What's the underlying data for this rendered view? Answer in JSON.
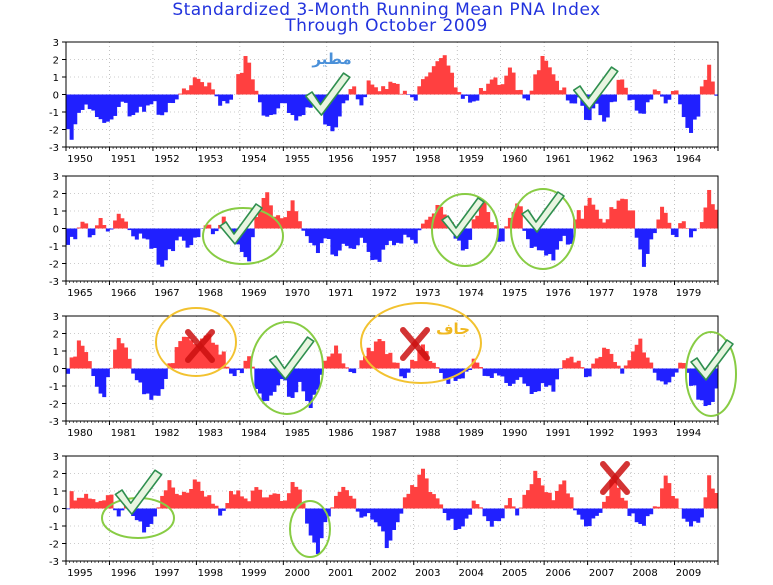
{
  "title": "Standardized 3-Month Running Mean PNA Index",
  "subtitle": "Through October 2009",
  "colors": {
    "positive": "#ff4040",
    "negative": "#2020ff",
    "circle_green": "#88cc44",
    "circle_yellow": "#f2c230",
    "check": "#2f8f4f",
    "cross": "#cc1111"
  },
  "chart_data": [
    {
      "type": "area",
      "x_range": [
        1950,
        1965
      ],
      "year_labels": [
        "1950",
        "1951",
        "1952",
        "1953",
        "1954",
        "1955",
        "1956",
        "1957",
        "1958",
        "1959",
        "1960",
        "1961",
        "1962",
        "1963",
        "1964"
      ],
      "ylim": [
        -3,
        3
      ],
      "yticks": [
        "3",
        "2",
        "1",
        "0",
        "-1",
        "-2",
        "-3"
      ],
      "grid": true,
      "points": [
        [
          1950.0,
          -1.5
        ],
        [
          1950.1,
          -2.8
        ],
        [
          1950.25,
          -1.2
        ],
        [
          1950.5,
          -0.6
        ],
        [
          1950.75,
          -1.4
        ],
        [
          1951.0,
          -1.6
        ],
        [
          1951.3,
          -0.4
        ],
        [
          1951.5,
          -1.2
        ],
        [
          1951.7,
          -0.9
        ],
        [
          1952.0,
          -0.5
        ],
        [
          1952.2,
          -1.2
        ],
        [
          1952.5,
          -0.3
        ],
        [
          1952.75,
          0.3
        ],
        [
          1953.0,
          0.9
        ],
        [
          1953.3,
          0.5
        ],
        [
          1953.6,
          -0.6
        ],
        [
          1953.8,
          -0.3
        ],
        [
          1954.0,
          1.1
        ],
        [
          1954.15,
          2.3
        ],
        [
          1954.35,
          0.3
        ],
        [
          1954.6,
          -1.4
        ],
        [
          1954.8,
          -1.0
        ],
        [
          1955.0,
          -0.5
        ],
        [
          1955.3,
          -1.5
        ],
        [
          1955.5,
          -0.9
        ],
        [
          1955.75,
          -0.6
        ],
        [
          1956.0,
          -1.8
        ],
        [
          1956.2,
          -2.0
        ],
        [
          1956.4,
          -0.4
        ],
        [
          1956.6,
          0.4
        ],
        [
          1956.8,
          -0.6
        ],
        [
          1957.0,
          0.8
        ],
        [
          1957.2,
          0.2
        ],
        [
          1957.5,
          0.7
        ],
        [
          1957.75,
          0.2
        ],
        [
          1958.0,
          -0.3
        ],
        [
          1958.2,
          0.8
        ],
        [
          1958.5,
          1.7
        ],
        [
          1958.7,
          2.3
        ],
        [
          1958.9,
          1.0
        ],
        [
          1959.0,
          0.2
        ],
        [
          1959.2,
          -0.3
        ],
        [
          1959.4,
          -0.4
        ],
        [
          1959.6,
          0.3
        ],
        [
          1959.8,
          0.9
        ],
        [
          1960.0,
          0.6
        ],
        [
          1960.25,
          1.5
        ],
        [
          1960.4,
          0.3
        ],
        [
          1960.6,
          -0.4
        ],
        [
          1960.8,
          1.0
        ],
        [
          1961.0,
          2.3
        ],
        [
          1961.15,
          1.3
        ],
        [
          1961.4,
          0.4
        ],
        [
          1961.6,
          -0.5
        ],
        [
          1961.8,
          -0.3
        ],
        [
          1962.0,
          -1.5
        ],
        [
          1962.2,
          -0.6
        ],
        [
          1962.4,
          -1.6
        ],
        [
          1962.6,
          -0.3
        ],
        [
          1962.75,
          1.0
        ],
        [
          1962.9,
          0.2
        ],
        [
          1963.0,
          -0.3
        ],
        [
          1963.2,
          -1.2
        ],
        [
          1963.4,
          -0.5
        ],
        [
          1963.6,
          0.4
        ],
        [
          1963.8,
          -0.6
        ],
        [
          1964.0,
          0.4
        ],
        [
          1964.2,
          -1.2
        ],
        [
          1964.35,
          -2.2
        ],
        [
          1964.5,
          -1.5
        ],
        [
          1964.65,
          0.6
        ],
        [
          1964.8,
          1.5
        ],
        [
          1964.9,
          0.8
        ],
        [
          1965.0,
          -0.6
        ]
      ]
    },
    {
      "type": "area",
      "x_range": [
        1965,
        1980
      ],
      "year_labels": [
        "1965",
        "1966",
        "1967",
        "1968",
        "1969",
        "1970",
        "1971",
        "1972",
        "1973",
        "1974",
        "1975",
        "1976",
        "1977",
        "1978",
        "1979"
      ],
      "ylim": [
        -3,
        3
      ],
      "yticks": [
        "3",
        "2",
        "1",
        "0",
        "-1",
        "-2",
        "-3"
      ],
      "grid": true,
      "points": [
        [
          1965.0,
          -1.0
        ],
        [
          1965.2,
          -0.4
        ],
        [
          1965.4,
          0.4
        ],
        [
          1965.6,
          -0.5
        ],
        [
          1965.8,
          0.6
        ],
        [
          1966.0,
          -0.3
        ],
        [
          1966.2,
          0.9
        ],
        [
          1966.4,
          0.2
        ],
        [
          1966.6,
          -0.6
        ],
        [
          1966.8,
          -0.4
        ],
        [
          1967.0,
          -1.2
        ],
        [
          1967.2,
          -2.2
        ],
        [
          1967.4,
          -1.3
        ],
        [
          1967.6,
          -0.5
        ],
        [
          1967.8,
          -1.0
        ],
        [
          1968.0,
          -0.6
        ],
        [
          1968.2,
          0.3
        ],
        [
          1968.4,
          -0.3
        ],
        [
          1968.6,
          0.5
        ],
        [
          1968.8,
          -0.4
        ],
        [
          1969.0,
          -1.2
        ],
        [
          1969.2,
          -1.8
        ],
        [
          1969.4,
          0.8
        ],
        [
          1969.6,
          2.0
        ],
        [
          1969.8,
          0.8
        ],
        [
          1970.0,
          0.5
        ],
        [
          1970.2,
          1.5
        ],
        [
          1970.4,
          0.3
        ],
        [
          1970.6,
          -0.8
        ],
        [
          1970.8,
          -1.2
        ],
        [
          1971.0,
          -0.5
        ],
        [
          1971.2,
          -1.7
        ],
        [
          1971.4,
          -0.8
        ],
        [
          1971.6,
          -1.3
        ],
        [
          1971.8,
          -0.5
        ],
        [
          1972.0,
          -1.6
        ],
        [
          1972.2,
          -1.9
        ],
        [
          1972.4,
          -0.7
        ],
        [
          1972.6,
          -1.0
        ],
        [
          1972.8,
          -0.4
        ],
        [
          1973.0,
          -0.8
        ],
        [
          1973.2,
          0.2
        ],
        [
          1973.4,
          0.8
        ],
        [
          1973.6,
          1.3
        ],
        [
          1973.8,
          0.5
        ],
        [
          1974.0,
          -0.6
        ],
        [
          1974.2,
          -1.4
        ],
        [
          1974.4,
          0.6
        ],
        [
          1974.6,
          1.7
        ],
        [
          1974.8,
          0.4
        ],
        [
          1975.0,
          -0.8
        ],
        [
          1975.2,
          0.5
        ],
        [
          1975.4,
          1.6
        ],
        [
          1975.6,
          -0.6
        ],
        [
          1975.8,
          -1.2
        ],
        [
          1976.0,
          -1.3
        ],
        [
          1976.2,
          -1.8
        ],
        [
          1976.4,
          -0.5
        ],
        [
          1976.6,
          -1.0
        ],
        [
          1976.75,
          1.0
        ],
        [
          1976.9,
          0.5
        ],
        [
          1977.0,
          1.9
        ],
        [
          1977.2,
          1.0
        ],
        [
          1977.4,
          0.3
        ],
        [
          1977.6,
          1.3
        ],
        [
          1977.8,
          1.7
        ],
        [
          1978.0,
          1.2
        ],
        [
          1978.2,
          -1.3
        ],
        [
          1978.3,
          -2.0
        ],
        [
          1978.5,
          -0.5
        ],
        [
          1978.7,
          1.2
        ],
        [
          1978.9,
          0.3
        ],
        [
          1979.0,
          -0.6
        ],
        [
          1979.2,
          0.5
        ],
        [
          1979.4,
          -0.5
        ],
        [
          1979.6,
          0.3
        ],
        [
          1979.8,
          2.0
        ],
        [
          1979.95,
          1.1
        ],
        [
          1980.0,
          0.5
        ]
      ]
    },
    {
      "type": "area",
      "x_range": [
        1980,
        1995
      ],
      "year_labels": [
        "1980",
        "1981",
        "1982",
        "1983",
        "1984",
        "1985",
        "1986",
        "1987",
        "1988",
        "1989",
        "1990",
        "1991",
        "1992",
        "1993",
        "1994"
      ],
      "ylim": [
        -3,
        3
      ],
      "yticks": [
        "3",
        "2",
        "1",
        "0",
        "-1",
        "-2",
        "-3"
      ],
      "grid": true,
      "points": [
        [
          1980.0,
          -0.5
        ],
        [
          1980.15,
          0.6
        ],
        [
          1980.3,
          1.5
        ],
        [
          1980.5,
          0.8
        ],
        [
          1980.7,
          -1.1
        ],
        [
          1980.85,
          -1.6
        ],
        [
          1981.0,
          -0.3
        ],
        [
          1981.2,
          1.8
        ],
        [
          1981.4,
          1.0
        ],
        [
          1981.6,
          -0.6
        ],
        [
          1981.8,
          -1.3
        ],
        [
          1982.0,
          -1.8
        ],
        [
          1982.2,
          -1.2
        ],
        [
          1982.4,
          0.2
        ],
        [
          1982.6,
          1.5
        ],
        [
          1982.8,
          1.9
        ],
        [
          1983.0,
          1.2
        ],
        [
          1983.2,
          2.0
        ],
        [
          1983.4,
          1.5
        ],
        [
          1983.6,
          0.8
        ],
        [
          1983.8,
          -0.3
        ],
        [
          1984.0,
          -0.3
        ],
        [
          1984.2,
          0.8
        ],
        [
          1984.4,
          -1.2
        ],
        [
          1984.6,
          -2.0
        ],
        [
          1984.8,
          -1.2
        ],
        [
          1985.0,
          -0.6
        ],
        [
          1985.2,
          -1.8
        ],
        [
          1985.4,
          -0.8
        ],
        [
          1985.6,
          -2.3
        ],
        [
          1985.8,
          -1.0
        ],
        [
          1986.0,
          0.6
        ],
        [
          1986.2,
          1.2
        ],
        [
          1986.4,
          0.3
        ],
        [
          1986.6,
          -0.4
        ],
        [
          1986.8,
          0.5
        ],
        [
          1987.0,
          1.1
        ],
        [
          1987.2,
          1.7
        ],
        [
          1987.4,
          1.0
        ],
        [
          1987.6,
          0.2
        ],
        [
          1987.8,
          -0.6
        ],
        [
          1988.0,
          0.5
        ],
        [
          1988.2,
          1.3
        ],
        [
          1988.4,
          0.5
        ],
        [
          1988.6,
          -0.2
        ],
        [
          1988.8,
          -0.8
        ],
        [
          1989.0,
          -0.6
        ],
        [
          1989.2,
          -0.4
        ],
        [
          1989.4,
          0.6
        ],
        [
          1989.6,
          -0.3
        ],
        [
          1989.8,
          -0.5
        ],
        [
          1990.0,
          -0.3
        ],
        [
          1990.2,
          -1.1
        ],
        [
          1990.4,
          -0.5
        ],
        [
          1990.6,
          -1.0
        ],
        [
          1990.8,
          -1.5
        ],
        [
          1991.0,
          -0.8
        ],
        [
          1991.2,
          -1.3
        ],
        [
          1991.4,
          0.2
        ],
        [
          1991.6,
          0.7
        ],
        [
          1991.8,
          0.3
        ],
        [
          1992.0,
          -0.5
        ],
        [
          1992.2,
          0.5
        ],
        [
          1992.4,
          1.2
        ],
        [
          1992.6,
          0.6
        ],
        [
          1992.8,
          -0.3
        ],
        [
          1993.0,
          0.8
        ],
        [
          1993.2,
          1.6
        ],
        [
          1993.4,
          0.5
        ],
        [
          1993.6,
          -0.5
        ],
        [
          1993.8,
          -1.0
        ],
        [
          1994.0,
          -0.3
        ],
        [
          1994.2,
          0.4
        ],
        [
          1994.4,
          -1.0
        ],
        [
          1994.6,
          -1.8
        ],
        [
          1994.8,
          -2.3
        ],
        [
          1994.95,
          -1.2
        ],
        [
          1995.0,
          -0.5
        ]
      ]
    },
    {
      "type": "area",
      "x_range": [
        1995,
        2010
      ],
      "year_labels": [
        "1995",
        "1996",
        "1997",
        "1998",
        "1999",
        "2000",
        "2001",
        "2002",
        "2003",
        "2004",
        "2005",
        "2006",
        "2007",
        "2008",
        "2009"
      ],
      "ylim": [
        -3,
        3
      ],
      "yticks": [
        "3",
        "2",
        "1",
        "0",
        "-1",
        "-2",
        "-3"
      ],
      "grid": true,
      "points": [
        [
          1995.0,
          -0.6
        ],
        [
          1995.1,
          0.9
        ],
        [
          1995.3,
          0.5
        ],
        [
          1995.5,
          0.8
        ],
        [
          1995.7,
          0.3
        ],
        [
          1995.9,
          0.6
        ],
        [
          1996.0,
          0.8
        ],
        [
          1996.2,
          -0.4
        ],
        [
          1996.4,
          0.3
        ],
        [
          1996.6,
          -0.6
        ],
        [
          1996.8,
          -1.2
        ],
        [
          1997.0,
          -0.8
        ],
        [
          1997.2,
          0.7
        ],
        [
          1997.4,
          1.5
        ],
        [
          1997.6,
          0.7
        ],
        [
          1997.8,
          1.0
        ],
        [
          1998.0,
          1.6
        ],
        [
          1998.2,
          0.8
        ],
        [
          1998.4,
          0.3
        ],
        [
          1998.6,
          -0.4
        ],
        [
          1998.8,
          1.0
        ],
        [
          1999.0,
          0.8
        ],
        [
          1999.2,
          0.5
        ],
        [
          1999.4,
          1.3
        ],
        [
          1999.6,
          0.5
        ],
        [
          1999.8,
          1.0
        ],
        [
          2000.0,
          0.3
        ],
        [
          2000.2,
          1.4
        ],
        [
          2000.4,
          1.0
        ],
        [
          2000.6,
          -1.5
        ],
        [
          2000.8,
          -2.4
        ],
        [
          2001.0,
          -0.6
        ],
        [
          2001.2,
          0.6
        ],
        [
          2001.4,
          1.3
        ],
        [
          2001.6,
          0.5
        ],
        [
          2001.8,
          -0.5
        ],
        [
          2002.0,
          -0.4
        ],
        [
          2002.2,
          -1.0
        ],
        [
          2002.4,
          -2.1
        ],
        [
          2002.6,
          -1.0
        ],
        [
          2002.8,
          0.6
        ],
        [
          2003.0,
          1.3
        ],
        [
          2003.2,
          2.2
        ],
        [
          2003.4,
          1.0
        ],
        [
          2003.6,
          0.3
        ],
        [
          2003.8,
          -0.6
        ],
        [
          2004.0,
          -1.2
        ],
        [
          2004.2,
          -0.8
        ],
        [
          2004.4,
          0.5
        ],
        [
          2004.6,
          -0.3
        ],
        [
          2004.8,
          -1.0
        ],
        [
          2005.0,
          -0.6
        ],
        [
          2005.2,
          0.5
        ],
        [
          2005.4,
          -0.3
        ],
        [
          2005.6,
          1.0
        ],
        [
          2005.8,
          2.0
        ],
        [
          2006.0,
          1.2
        ],
        [
          2006.2,
          0.5
        ],
        [
          2006.4,
          1.6
        ],
        [
          2006.6,
          0.7
        ],
        [
          2006.8,
          -0.5
        ],
        [
          2007.0,
          -1.0
        ],
        [
          2007.2,
          -0.5
        ],
        [
          2007.4,
          0.4
        ],
        [
          2007.6,
          1.8
        ],
        [
          2007.8,
          0.6
        ],
        [
          2008.0,
          -0.3
        ],
        [
          2008.2,
          -1.0
        ],
        [
          2008.4,
          -0.5
        ],
        [
          2008.6,
          0.2
        ],
        [
          2008.8,
          1.8
        ],
        [
          2009.0,
          0.7
        ],
        [
          2009.2,
          -0.5
        ],
        [
          2009.4,
          -1.0
        ],
        [
          2009.6,
          -0.6
        ],
        [
          2009.8,
          1.7
        ],
        [
          2009.95,
          0.9
        ],
        [
          2010.0,
          0.5
        ]
      ]
    }
  ],
  "annotations": {
    "label_rainy": "مطير",
    "label_dry": "جاف"
  }
}
